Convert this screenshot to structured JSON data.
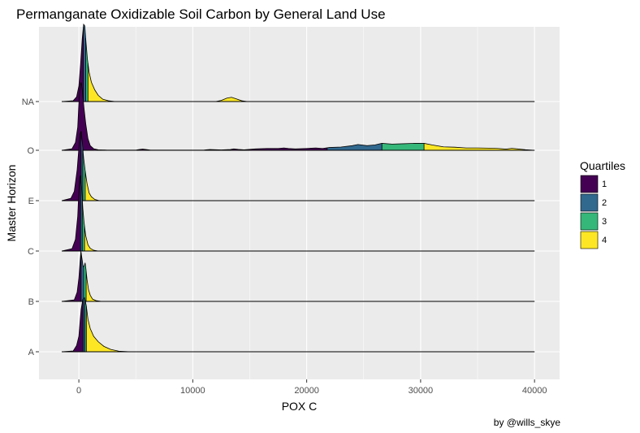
{
  "chart_data": {
    "type": "ridgeline",
    "title": "Permanganate Oxidizable Soil Carbon by General Land Use",
    "xlabel": "POX C",
    "ylabel": "Master Horizon",
    "caption": "by @wills_skye",
    "xlim": [
      -3500,
      42200
    ],
    "x_ticks": [
      0,
      10000,
      20000,
      30000,
      40000
    ],
    "x_tick_labels": [
      "0",
      "10000",
      "20000",
      "30000",
      "40000"
    ],
    "baseline_range": [
      -1500,
      40000
    ],
    "categories": [
      "A",
      "B",
      "C",
      "E",
      "O",
      "NA"
    ],
    "grid": true,
    "legend": {
      "title": "Quartiles",
      "position": "right",
      "entries": [
        {
          "label": "1",
          "color": "#440154"
        },
        {
          "label": "2",
          "color": "#31688e"
        },
        {
          "label": "3",
          "color": "#35b779"
        },
        {
          "label": "4",
          "color": "#fde725"
        }
      ]
    },
    "series": [
      {
        "category": "A",
        "quartile_breaks": [
          380,
          530,
          660
        ],
        "density": [
          [
            -1500,
            0
          ],
          [
            -500,
            0.01
          ],
          [
            -200,
            0.08
          ],
          [
            0,
            0.2
          ],
          [
            100,
            0.38
          ],
          [
            200,
            0.55
          ],
          [
            350,
            0.68
          ],
          [
            500,
            0.7
          ],
          [
            650,
            0.6
          ],
          [
            800,
            0.42
          ],
          [
            1000,
            0.3
          ],
          [
            1300,
            0.2
          ],
          [
            1700,
            0.13
          ],
          [
            2200,
            0.07
          ],
          [
            2800,
            0.03
          ],
          [
            3500,
            0.008
          ],
          [
            4500,
            0
          ]
        ]
      },
      {
        "category": "B",
        "quartile_breaks": [
          200,
          420,
          640
        ],
        "density": [
          [
            -1500,
            0
          ],
          [
            -400,
            0.02
          ],
          [
            -150,
            0.12
          ],
          [
            0,
            0.3
          ],
          [
            100,
            0.5
          ],
          [
            180,
            0.65
          ],
          [
            280,
            0.55
          ],
          [
            380,
            0.45
          ],
          [
            480,
            0.46
          ],
          [
            550,
            0.5
          ],
          [
            620,
            0.42
          ],
          [
            720,
            0.28
          ],
          [
            850,
            0.15
          ],
          [
            1000,
            0.08
          ],
          [
            1200,
            0.03
          ],
          [
            1500,
            0.01
          ],
          [
            2000,
            0
          ]
        ]
      },
      {
        "category": "C",
        "quartile_breaks": [
          150,
          300,
          500
        ],
        "density": [
          [
            -1500,
            0
          ],
          [
            -600,
            0.03
          ],
          [
            -300,
            0.15
          ],
          [
            -100,
            0.45
          ],
          [
            0,
            0.78
          ],
          [
            80,
            0.95
          ],
          [
            150,
            0.98
          ],
          [
            250,
            0.8
          ],
          [
            350,
            0.55
          ],
          [
            450,
            0.38
          ],
          [
            600,
            0.2
          ],
          [
            800,
            0.08
          ],
          [
            1000,
            0.035
          ],
          [
            1300,
            0.01
          ],
          [
            1700,
            0
          ]
        ]
      },
      {
        "category": "E",
        "quartile_breaks": [
          200,
          350,
          560
        ],
        "density": [
          [
            -1500,
            0
          ],
          [
            -700,
            0.03
          ],
          [
            -400,
            0.12
          ],
          [
            -150,
            0.4
          ],
          [
            0,
            0.68
          ],
          [
            100,
            0.86
          ],
          [
            200,
            0.9
          ],
          [
            300,
            0.76
          ],
          [
            420,
            0.55
          ],
          [
            560,
            0.38
          ],
          [
            720,
            0.22
          ],
          [
            900,
            0.1
          ],
          [
            1100,
            0.05
          ],
          [
            1400,
            0.015
          ],
          [
            1800,
            0
          ]
        ]
      },
      {
        "category": "O",
        "quartile_breaks": [
          21800,
          26600,
          30300
        ],
        "density": [
          [
            -1500,
            0
          ],
          [
            -600,
            0.02
          ],
          [
            -300,
            0.1
          ],
          [
            -100,
            0.3
          ],
          [
            0,
            0.6
          ],
          [
            100,
            0.82
          ],
          [
            200,
            0.88
          ],
          [
            300,
            0.78
          ],
          [
            450,
            0.55
          ],
          [
            600,
            0.35
          ],
          [
            800,
            0.15
          ],
          [
            1000,
            0.06
          ],
          [
            1300,
            0.02
          ],
          [
            1700,
            0.006
          ],
          [
            2500,
            0.003
          ],
          [
            5000,
            0.003
          ],
          [
            5300,
            0.01
          ],
          [
            5600,
            0.015
          ],
          [
            5900,
            0.01
          ],
          [
            6300,
            0.003
          ],
          [
            11000,
            0.004
          ],
          [
            11500,
            0.01
          ],
          [
            12000,
            0.008
          ],
          [
            12500,
            0.005
          ],
          [
            13300,
            0.01
          ],
          [
            13600,
            0.018
          ],
          [
            14000,
            0.012
          ],
          [
            14500,
            0.007
          ],
          [
            15500,
            0.018
          ],
          [
            16500,
            0.024
          ],
          [
            17500,
            0.024
          ],
          [
            18000,
            0.03
          ],
          [
            18400,
            0.024
          ],
          [
            19000,
            0.018
          ],
          [
            20000,
            0.024
          ],
          [
            20800,
            0.03
          ],
          [
            21400,
            0.024
          ],
          [
            22000,
            0.036
          ],
          [
            23000,
            0.042
          ],
          [
            24000,
            0.06
          ],
          [
            24500,
            0.075
          ],
          [
            25300,
            0.06
          ],
          [
            26000,
            0.07
          ],
          [
            26600,
            0.09
          ],
          [
            27500,
            0.08
          ],
          [
            28500,
            0.085
          ],
          [
            29500,
            0.09
          ],
          [
            30300,
            0.09
          ],
          [
            31000,
            0.07
          ],
          [
            32000,
            0.045
          ],
          [
            33000,
            0.04
          ],
          [
            34000,
            0.03
          ],
          [
            35000,
            0.03
          ],
          [
            36000,
            0.028
          ],
          [
            36800,
            0.024
          ],
          [
            37500,
            0.015
          ],
          [
            38000,
            0.025
          ],
          [
            38500,
            0.018
          ],
          [
            39200,
            0.008
          ],
          [
            40000,
            0
          ]
        ]
      },
      {
        "category": "NA",
        "quartile_breaks": [
          400,
          600,
          800
        ],
        "density": [
          [
            -1500,
            0
          ],
          [
            -500,
            0.01
          ],
          [
            -200,
            0.06
          ],
          [
            0,
            0.2
          ],
          [
            150,
            0.48
          ],
          [
            300,
            0.82
          ],
          [
            420,
            1.0
          ],
          [
            520,
            0.98
          ],
          [
            620,
            0.78
          ],
          [
            750,
            0.55
          ],
          [
            900,
            0.38
          ],
          [
            1100,
            0.25
          ],
          [
            1400,
            0.15
          ],
          [
            1700,
            0.08
          ],
          [
            2100,
            0.03
          ],
          [
            2600,
            0.01
          ],
          [
            3200,
            0
          ],
          [
            12000,
            0
          ],
          [
            12500,
            0.015
          ],
          [
            13000,
            0.045
          ],
          [
            13400,
            0.055
          ],
          [
            13800,
            0.035
          ],
          [
            14300,
            0.01
          ],
          [
            14800,
            0
          ]
        ]
      }
    ]
  }
}
